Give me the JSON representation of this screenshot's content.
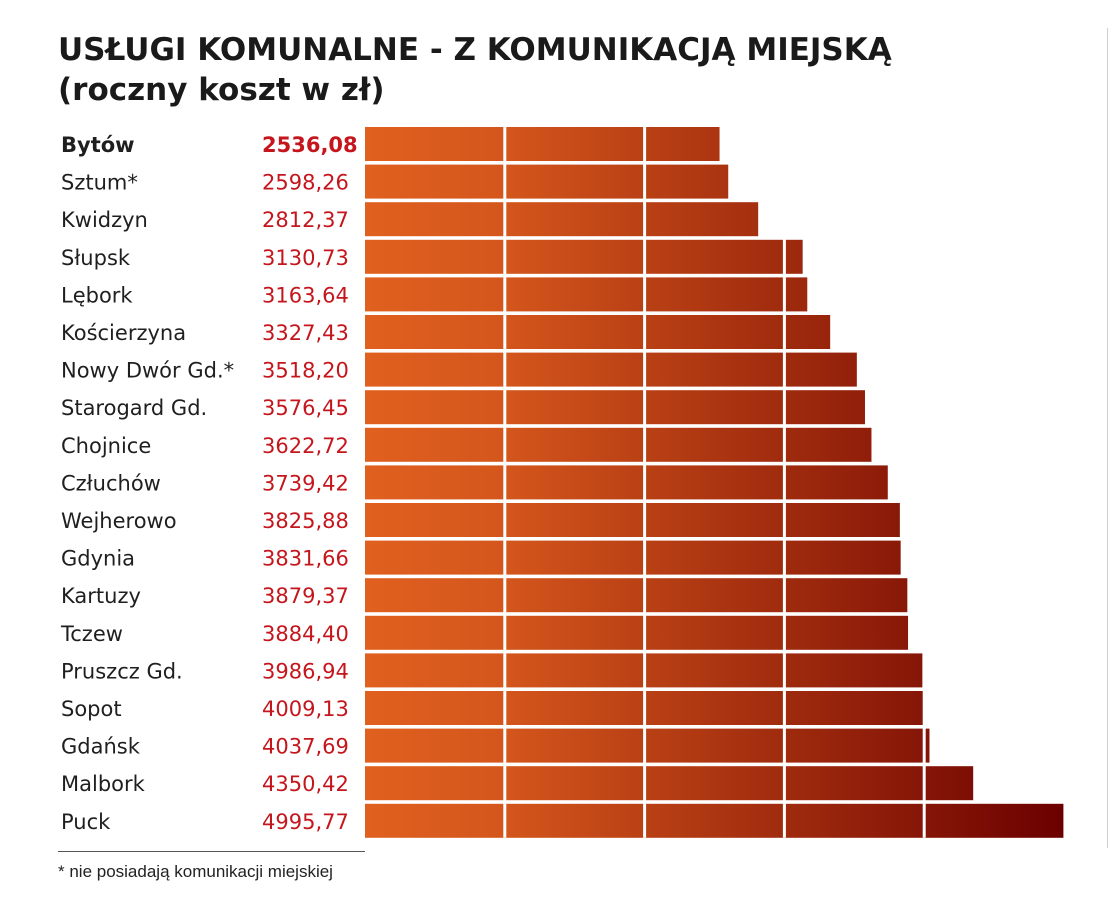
{
  "chart_data": {
    "type": "bar",
    "title_line1": "USŁUGI KOMUNALNE - Z KOMUNIKACJĄ MIEJSKĄ",
    "title_line2": "(roczny koszt w zł)",
    "categories": [
      "Bytów",
      "Sztum*",
      "Kwidzyn",
      "Słupsk",
      "Lębork",
      "Kościerzyna",
      "Nowy Dwór Gd.*",
      "Starogard Gd.",
      "Chojnice",
      "Człuchów",
      "Wejherowo",
      "Gdynia",
      "Kartuzy",
      "Tczew",
      "Pruszcz Gd.",
      "Sopot",
      "Gdańsk",
      "Malbork",
      "Puck"
    ],
    "value_labels": [
      "2536,08",
      "2598,26",
      "2812,37",
      "3130,73",
      "3163,64",
      "3327,43",
      "3518,20",
      "3576,45",
      "3622,72",
      "3739,42",
      "3825,88",
      "3831,66",
      "3879,37",
      "3884,40",
      "3986,94",
      "4009,13",
      "4037,69",
      "4350,42",
      "4995,77"
    ],
    "values": [
      2536.08,
      2598.26,
      2812.37,
      3130.73,
      3163.64,
      3327.43,
      3518.2,
      3576.45,
      3622.72,
      3739.42,
      3825.88,
      3831.66,
      3879.37,
      3884.4,
      3986.94,
      4009.13,
      4037.69,
      4350.42,
      4995.77
    ],
    "highlight": "Bytów",
    "xlim": [
      0,
      5000
    ],
    "gridlines": [
      1000,
      2000,
      3000,
      4000
    ],
    "grid": true,
    "orientation": "horizontal",
    "colors": {
      "bar_start": "#e0601f",
      "bar_end": "#6b0000",
      "value_text": "#c4161c",
      "label_text": "#1f1f1f"
    }
  },
  "footnote": "* nie posiadają komunikacji miejskiej"
}
